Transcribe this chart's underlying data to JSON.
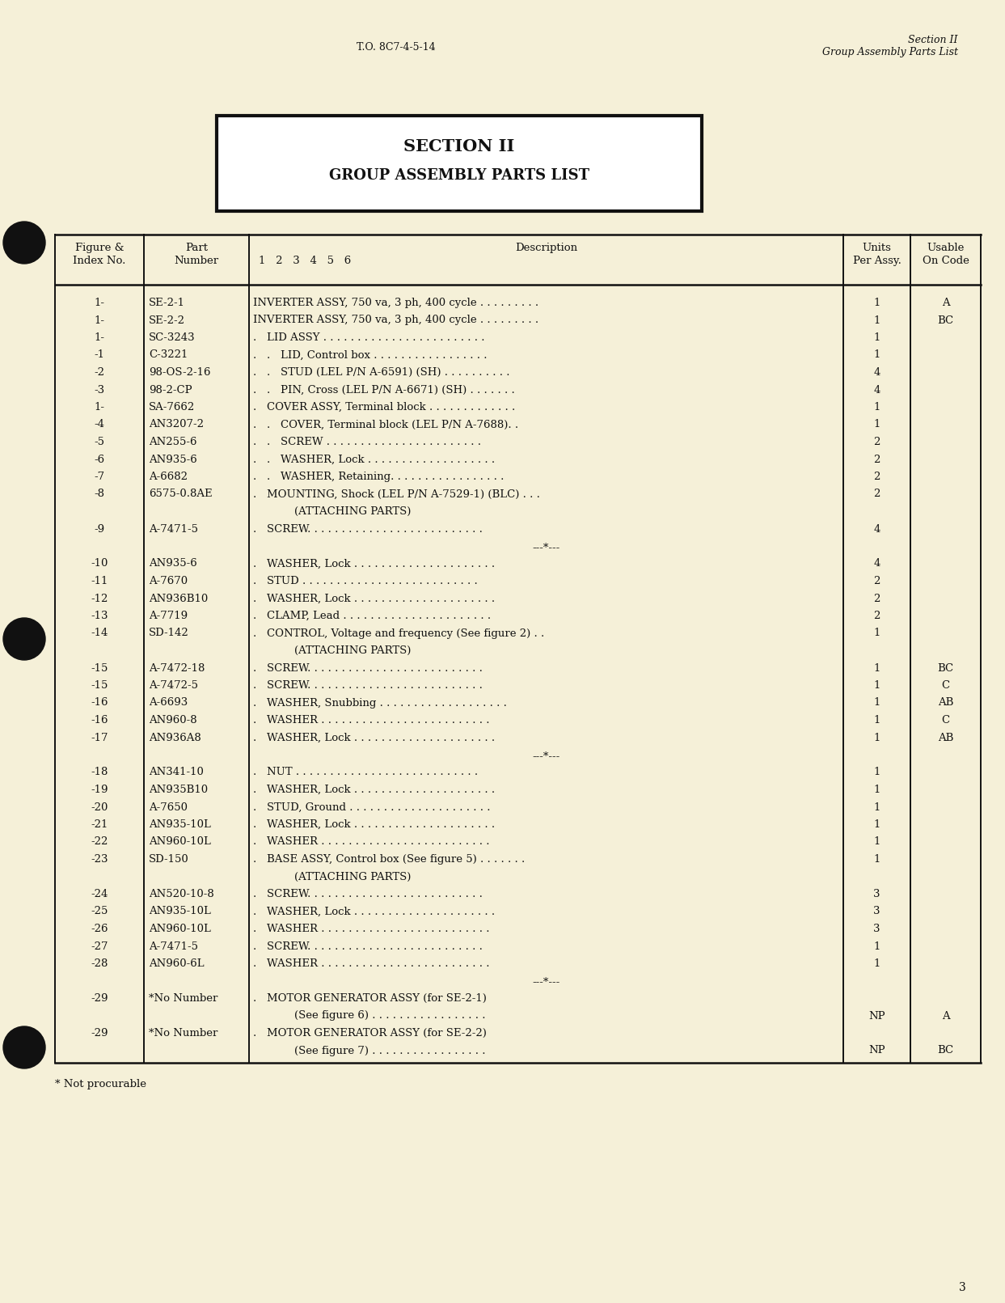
{
  "bg_color": "#f5f0d8",
  "page_num": "3",
  "header_left": "T.O. 8C7-4-5-14",
  "header_right_line1": "Section II",
  "header_right_line2": "Group Assembly Parts List",
  "section_title_line1": "SECTION II",
  "section_title_line2": "GROUP ASSEMBLY PARTS LIST",
  "rows": [
    {
      "fig": "1-",
      "part": "SE-2-1",
      "desc": "INVERTER ASSY, 750 va, 3 ph, 400 cycle . . . . . . . . .",
      "units": "1",
      "usable": "A",
      "type": "normal"
    },
    {
      "fig": "1-",
      "part": "SE-2-2",
      "desc": "INVERTER ASSY, 750 va, 3 ph, 400 cycle . . . . . . . . .",
      "units": "1",
      "usable": "BC",
      "type": "normal"
    },
    {
      "fig": "1-",
      "part": "SC-3243",
      "desc": ".   LID ASSY . . . . . . . . . . . . . . . . . . . . . . . .",
      "units": "1",
      "usable": "",
      "type": "normal"
    },
    {
      "fig": "-1",
      "part": "C-3221",
      "desc": ".   .   LID, Control box . . . . . . . . . . . . . . . . .",
      "units": "1",
      "usable": "",
      "type": "normal"
    },
    {
      "fig": "-2",
      "part": "98-OS-2-16",
      "desc": ".   .   STUD (LEL P/N A-6591) (SH) . . . . . . . . . .",
      "units": "4",
      "usable": "",
      "type": "normal"
    },
    {
      "fig": "-3",
      "part": "98-2-CP",
      "desc": ".   .   PIN, Cross (LEL P/N A-6671) (SH) . . . . . . .",
      "units": "4",
      "usable": "",
      "type": "normal"
    },
    {
      "fig": "1-",
      "part": "SA-7662",
      "desc": ".   COVER ASSY, Terminal block . . . . . . . . . . . . .",
      "units": "1",
      "usable": "",
      "type": "normal"
    },
    {
      "fig": "-4",
      "part": "AN3207-2",
      "desc": ".   .   COVER, Terminal block (LEL P/N A-7688). .",
      "units": "1",
      "usable": "",
      "type": "normal"
    },
    {
      "fig": "-5",
      "part": "AN255-6",
      "desc": ".   .   SCREW . . . . . . . . . . . . . . . . . . . . . . .",
      "units": "2",
      "usable": "",
      "type": "normal"
    },
    {
      "fig": "-6",
      "part": "AN935-6",
      "desc": ".   .   WASHER, Lock . . . . . . . . . . . . . . . . . . .",
      "units": "2",
      "usable": "",
      "type": "normal"
    },
    {
      "fig": "-7",
      "part": "A-6682",
      "desc": ".   .   WASHER, Retaining. . . . . . . . . . . . . . . . .",
      "units": "2",
      "usable": "",
      "type": "normal"
    },
    {
      "fig": "-8",
      "part": "6575-0.8AE",
      "desc": ".   MOUNTING, Shock (LEL P/N A-7529-1) (BLC) . . .",
      "units": "2",
      "usable": "",
      "type": "normal"
    },
    {
      "fig": "",
      "part": "",
      "desc": "            (ATTACHING PARTS)",
      "units": "",
      "usable": "",
      "type": "sub"
    },
    {
      "fig": "-9",
      "part": "A-7471-5",
      "desc": ".   SCREW. . . . . . . . . . . . . . . . . . . . . . . . . .",
      "units": "4",
      "usable": "",
      "type": "normal"
    },
    {
      "fig": "",
      "part": "",
      "desc": "---*---",
      "units": "",
      "usable": "",
      "type": "sep"
    },
    {
      "fig": "-10",
      "part": "AN935-6",
      "desc": ".   WASHER, Lock . . . . . . . . . . . . . . . . . . . . .",
      "units": "4",
      "usable": "",
      "type": "normal"
    },
    {
      "fig": "-11",
      "part": "A-7670",
      "desc": ".   STUD . . . . . . . . . . . . . . . . . . . . . . . . . .",
      "units": "2",
      "usable": "",
      "type": "normal"
    },
    {
      "fig": "-12",
      "part": "AN936B10",
      "desc": ".   WASHER, Lock . . . . . . . . . . . . . . . . . . . . .",
      "units": "2",
      "usable": "",
      "type": "normal"
    },
    {
      "fig": "-13",
      "part": "A-7719",
      "desc": ".   CLAMP, Lead . . . . . . . . . . . . . . . . . . . . . .",
      "units": "2",
      "usable": "",
      "type": "normal"
    },
    {
      "fig": "-14",
      "part": "SD-142",
      "desc": ".   CONTROL, Voltage and frequency (See figure 2) . .",
      "units": "1",
      "usable": "",
      "type": "normal"
    },
    {
      "fig": "",
      "part": "",
      "desc": "            (ATTACHING PARTS)",
      "units": "",
      "usable": "",
      "type": "sub"
    },
    {
      "fig": "-15",
      "part": "A-7472-18",
      "desc": ".   SCREW. . . . . . . . . . . . . . . . . . . . . . . . . .",
      "units": "1",
      "usable": "BC",
      "type": "normal"
    },
    {
      "fig": "-15",
      "part": "A-7472-5",
      "desc": ".   SCREW. . . . . . . . . . . . . . . . . . . . . . . . . .",
      "units": "1",
      "usable": "C",
      "type": "normal"
    },
    {
      "fig": "-16",
      "part": "A-6693",
      "desc": ".   WASHER, Snubbing . . . . . . . . . . . . . . . . . . .",
      "units": "1",
      "usable": "AB",
      "type": "normal"
    },
    {
      "fig": "-16",
      "part": "AN960-8",
      "desc": ".   WASHER . . . . . . . . . . . . . . . . . . . . . . . . .",
      "units": "1",
      "usable": "C",
      "type": "normal"
    },
    {
      "fig": "-17",
      "part": "AN936A8",
      "desc": ".   WASHER, Lock . . . . . . . . . . . . . . . . . . . . .",
      "units": "1",
      "usable": "AB",
      "type": "normal"
    },
    {
      "fig": "",
      "part": "",
      "desc": "---*---",
      "units": "",
      "usable": "",
      "type": "sep"
    },
    {
      "fig": "-18",
      "part": "AN341-10",
      "desc": ".   NUT . . . . . . . . . . . . . . . . . . . . . . . . . . .",
      "units": "1",
      "usable": "",
      "type": "normal"
    },
    {
      "fig": "-19",
      "part": "AN935B10",
      "desc": ".   WASHER, Lock . . . . . . . . . . . . . . . . . . . . .",
      "units": "1",
      "usable": "",
      "type": "normal"
    },
    {
      "fig": "-20",
      "part": "A-7650",
      "desc": ".   STUD, Ground . . . . . . . . . . . . . . . . . . . . .",
      "units": "1",
      "usable": "",
      "type": "normal"
    },
    {
      "fig": "-21",
      "part": "AN935-10L",
      "desc": ".   WASHER, Lock . . . . . . . . . . . . . . . . . . . . .",
      "units": "1",
      "usable": "",
      "type": "normal"
    },
    {
      "fig": "-22",
      "part": "AN960-10L",
      "desc": ".   WASHER . . . . . . . . . . . . . . . . . . . . . . . . .",
      "units": "1",
      "usable": "",
      "type": "normal"
    },
    {
      "fig": "-23",
      "part": "SD-150",
      "desc": ".   BASE ASSY, Control box (See figure 5) . . . . . . .",
      "units": "1",
      "usable": "",
      "type": "normal"
    },
    {
      "fig": "",
      "part": "",
      "desc": "            (ATTACHING PARTS)",
      "units": "",
      "usable": "",
      "type": "sub"
    },
    {
      "fig": "-24",
      "part": "AN520-10-8",
      "desc": ".   SCREW. . . . . . . . . . . . . . . . . . . . . . . . . .",
      "units": "3",
      "usable": "",
      "type": "normal"
    },
    {
      "fig": "-25",
      "part": "AN935-10L",
      "desc": ".   WASHER, Lock . . . . . . . . . . . . . . . . . . . . .",
      "units": "3",
      "usable": "",
      "type": "normal"
    },
    {
      "fig": "-26",
      "part": "AN960-10L",
      "desc": ".   WASHER . . . . . . . . . . . . . . . . . . . . . . . . .",
      "units": "3",
      "usable": "",
      "type": "normal"
    },
    {
      "fig": "-27",
      "part": "A-7471-5",
      "desc": ".   SCREW. . . . . . . . . . . . . . . . . . . . . . . . . .",
      "units": "1",
      "usable": "",
      "type": "normal"
    },
    {
      "fig": "-28",
      "part": "AN960-6L",
      "desc": ".   WASHER . . . . . . . . . . . . . . . . . . . . . . . . .",
      "units": "1",
      "usable": "",
      "type": "normal"
    },
    {
      "fig": "",
      "part": "",
      "desc": "---*---",
      "units": "",
      "usable": "",
      "type": "sep"
    },
    {
      "fig": "-29",
      "part": "*No Number",
      "desc": ".   MOTOR GENERATOR ASSY (for SE-2-1)",
      "units": "",
      "usable": "",
      "type": "normal"
    },
    {
      "fig": "",
      "part": "",
      "desc": "            (See figure 6) . . . . . . . . . . . . . . . . .",
      "units": "NP",
      "usable": "A",
      "type": "sub"
    },
    {
      "fig": "-29",
      "part": "*No Number",
      "desc": ".   MOTOR GENERATOR ASSY (for SE-2-2)",
      "units": "",
      "usable": "",
      "type": "normal"
    },
    {
      "fig": "",
      "part": "",
      "desc": "            (See figure 7) . . . . . . . . . . . . . . . . .",
      "units": "NP",
      "usable": "BC",
      "type": "sub"
    }
  ],
  "footnote": "* Not procurable"
}
